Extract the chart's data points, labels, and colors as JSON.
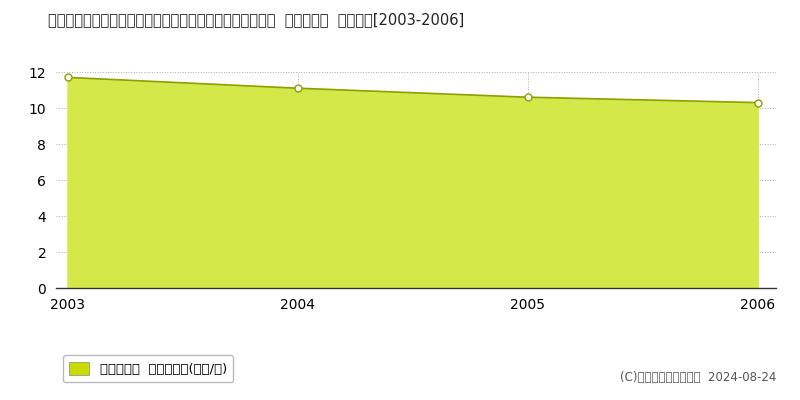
{
  "title": "三重県三重郡川越町大字豊田一色字国治４８２番１のうち  基準地価格  地価推移[2003-2006]",
  "years": [
    2003,
    2004,
    2005,
    2006
  ],
  "values": [
    11.7,
    11.1,
    10.6,
    10.3
  ],
  "line_color": "#8ca000",
  "fill_color": "#d4e84a",
  "fill_alpha": 1.0,
  "marker_color": "#8ca000",
  "marker_face": "white",
  "marker_size": 5,
  "ylim": [
    0,
    12
  ],
  "yticks": [
    0,
    2,
    4,
    6,
    8,
    10,
    12
  ],
  "grid_color": "#aaaaaa",
  "bg_color": "#ffffff",
  "legend_label": "基準地価格  平均坪単価(万円/坪)",
  "legend_color": "#c8dc00",
  "copyright_text": "(C)土地価格ドットコム  2024-08-24",
  "title_fontsize": 10.5,
  "tick_fontsize": 10,
  "legend_fontsize": 9.5,
  "copyright_fontsize": 8.5
}
